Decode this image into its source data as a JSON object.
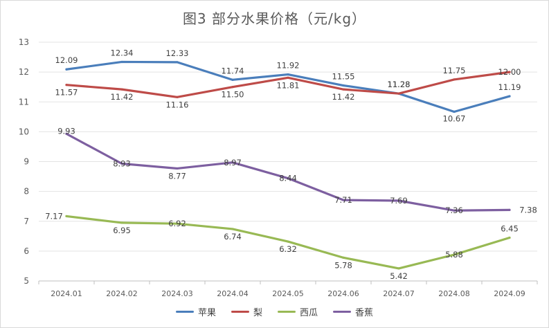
{
  "chart_data": {
    "type": "line",
    "title": "图3  部分水果价格（元/kg）",
    "categories": [
      "2024.01",
      "2024.02",
      "2024.03",
      "2024.04",
      "2024.05",
      "2024.06",
      "2024.07",
      "2024.08",
      "2024.09"
    ],
    "ylim": [
      5,
      13
    ],
    "yticks": [
      5,
      6,
      7,
      8,
      9,
      10,
      11,
      12,
      13
    ],
    "grid": true,
    "legend_position": "bottom",
    "series": [
      {
        "name": "苹果",
        "color": "#4a7ebb",
        "values": [
          12.09,
          12.34,
          12.33,
          11.74,
          11.92,
          11.55,
          11.28,
          10.67,
          11.19
        ],
        "labels": [
          "12.09",
          "12.34",
          "12.33",
          "11.74",
          "11.92",
          "11.55",
          "11.28",
          "10.67",
          "11.19"
        ]
      },
      {
        "name": "梨",
        "color": "#be4b48",
        "values": [
          11.57,
          11.42,
          11.16,
          11.5,
          11.81,
          11.42,
          11.28,
          11.75,
          12.0
        ],
        "labels": [
          "11.57",
          "11.42",
          "11.16",
          "11.50",
          "11.81",
          "11.42",
          "11.28",
          "11.75",
          "12.00"
        ]
      },
      {
        "name": "西瓜",
        "color": "#98b954",
        "values": [
          7.17,
          6.95,
          6.92,
          6.74,
          6.32,
          5.78,
          5.42,
          5.88,
          6.45
        ],
        "labels": [
          "7.17",
          "6.95",
          "6.92",
          "6.74",
          "6.32",
          "5.78",
          "5.42",
          "5.88",
          "6.45"
        ]
      },
      {
        "name": "香蕉",
        "color": "#7d5fa0",
        "values": [
          9.93,
          8.93,
          8.77,
          8.97,
          8.44,
          7.71,
          7.69,
          7.36,
          7.38
        ],
        "labels": [
          "9.93",
          "8.93",
          "8.77",
          "8.97",
          "8.44",
          "7.71",
          "7.69",
          "7.36",
          "7.38"
        ]
      }
    ]
  }
}
